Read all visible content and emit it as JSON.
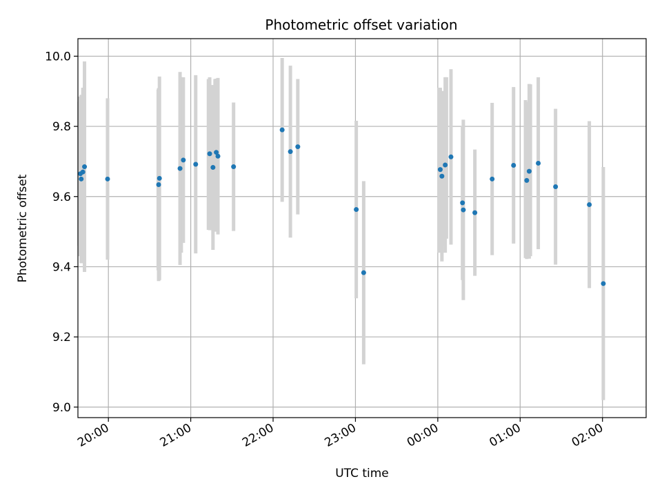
{
  "chart_data": {
    "type": "scatter",
    "title": "Photometric offset variation",
    "xlabel": "UTC time",
    "ylabel": "Photometric offset",
    "x_unit": "hours (UTC, continuing past midnight)",
    "xlim": [
      19.63,
      26.53
    ],
    "ylim": [
      8.97,
      10.05
    ],
    "grid": true,
    "legend": "none",
    "x_ticks": [
      {
        "value": 20,
        "label": "20:00"
      },
      {
        "value": 21,
        "label": "21:00"
      },
      {
        "value": 22,
        "label": "22:00"
      },
      {
        "value": 23,
        "label": "23:00"
      },
      {
        "value": 24,
        "label": "00:00"
      },
      {
        "value": 25,
        "label": "01:00"
      },
      {
        "value": 26,
        "label": "02:00"
      }
    ],
    "y_ticks": [
      {
        "value": 9.0,
        "label": "9.0"
      },
      {
        "value": 9.2,
        "label": "9.2"
      },
      {
        "value": 9.4,
        "label": "9.4"
      },
      {
        "value": 9.6,
        "label": "9.6"
      },
      {
        "value": 9.8,
        "label": "9.8"
      },
      {
        "value": 10.0,
        "label": "10.0"
      }
    ],
    "point_color": "#1f77b4",
    "errorbar_color": "#d3d3d3",
    "points": [
      {
        "x": 19.66,
        "y": 9.665,
        "err": 0.21
      },
      {
        "x": 19.67,
        "y": 9.65,
        "err": 0.24
      },
      {
        "x": 19.69,
        "y": 9.67,
        "err": 0.24
      },
      {
        "x": 19.71,
        "y": 9.685,
        "err": 0.3
      },
      {
        "x": 19.99,
        "y": 9.65,
        "err": 0.23
      },
      {
        "x": 20.61,
        "y": 9.634,
        "err": 0.275
      },
      {
        "x": 20.62,
        "y": 9.652,
        "err": 0.29
      },
      {
        "x": 20.87,
        "y": 9.68,
        "err": 0.275
      },
      {
        "x": 20.91,
        "y": 9.704,
        "err": 0.236
      },
      {
        "x": 21.06,
        "y": 9.692,
        "err": 0.254
      },
      {
        "x": 21.23,
        "y": 9.722,
        "err": 0.218
      },
      {
        "x": 21.27,
        "y": 9.683,
        "err": 0.235
      },
      {
        "x": 21.31,
        "y": 9.726,
        "err": 0.21
      },
      {
        "x": 21.33,
        "y": 9.715,
        "err": 0.223
      },
      {
        "x": 21.52,
        "y": 9.685,
        "err": 0.183
      },
      {
        "x": 22.11,
        "y": 9.79,
        "err": 0.205
      },
      {
        "x": 22.21,
        "y": 9.728,
        "err": 0.245
      },
      {
        "x": 22.3,
        "y": 9.742,
        "err": 0.193
      },
      {
        "x": 23.01,
        "y": 9.563,
        "err": 0.253
      },
      {
        "x": 23.1,
        "y": 9.383,
        "err": 0.261
      },
      {
        "x": 24.03,
        "y": 9.677,
        "err": 0.233
      },
      {
        "x": 24.05,
        "y": 9.658,
        "err": 0.243
      },
      {
        "x": 24.09,
        "y": 9.69,
        "err": 0.25
      },
      {
        "x": 24.16,
        "y": 9.713,
        "err": 0.25
      },
      {
        "x": 24.3,
        "y": 9.582,
        "err": 0.22
      },
      {
        "x": 24.31,
        "y": 9.562,
        "err": 0.257
      },
      {
        "x": 24.45,
        "y": 9.554,
        "err": 0.18
      },
      {
        "x": 24.66,
        "y": 9.65,
        "err": 0.217
      },
      {
        "x": 24.92,
        "y": 9.689,
        "err": 0.223
      },
      {
        "x": 25.08,
        "y": 9.646,
        "err": 0.224
      },
      {
        "x": 25.11,
        "y": 9.672,
        "err": 0.249
      },
      {
        "x": 25.22,
        "y": 9.695,
        "err": 0.245
      },
      {
        "x": 25.43,
        "y": 9.628,
        "err": 0.222
      },
      {
        "x": 25.84,
        "y": 9.577,
        "err": 0.238
      },
      {
        "x": 26.01,
        "y": 9.352,
        "err": 0.332
      }
    ],
    "extra_errorbars": [
      {
        "x": 19.645,
        "low": 9.46,
        "high": 9.87
      },
      {
        "x": 19.655,
        "low": 9.43,
        "high": 9.885
      },
      {
        "x": 19.695,
        "low": 9.45,
        "high": 9.91
      },
      {
        "x": 20.605,
        "low": 9.39,
        "high": 9.905
      },
      {
        "x": 20.885,
        "low": 9.44,
        "high": 9.94
      },
      {
        "x": 21.215,
        "low": 9.505,
        "high": 9.935
      },
      {
        "x": 21.245,
        "low": 9.52,
        "high": 9.915
      },
      {
        "x": 21.295,
        "low": 9.5,
        "high": 9.935
      },
      {
        "x": 24.015,
        "low": 9.44,
        "high": 9.91
      },
      {
        "x": 24.065,
        "low": 9.46,
        "high": 9.9
      },
      {
        "x": 24.105,
        "low": 9.48,
        "high": 9.94
      },
      {
        "x": 25.065,
        "low": 9.425,
        "high": 9.875
      },
      {
        "x": 25.125,
        "low": 9.43,
        "high": 9.92
      }
    ]
  }
}
